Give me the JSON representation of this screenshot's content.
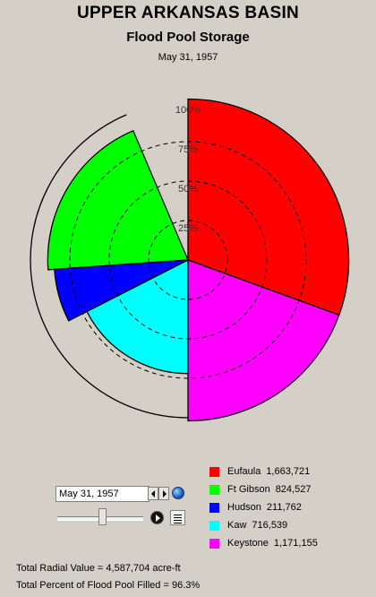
{
  "header": {
    "title": "UPPER ARKANSAS BASIN",
    "subtitle": "Flood Pool Storage",
    "date": "May 31, 1957"
  },
  "chart_data": {
    "type": "polar-area",
    "title": "UPPER ARKANSAS BASIN",
    "subtitle": "Flood Pool Storage",
    "date": "May 31, 1957",
    "radial_ticks": [
      {
        "value": 25,
        "label": "25%"
      },
      {
        "value": 50,
        "label": "50%"
      },
      {
        "value": 75,
        "label": "75%"
      },
      {
        "value": 100,
        "label": "100%"
      }
    ],
    "radial_max": 100,
    "slices": [
      {
        "name": "Eufaula",
        "value_label": "1,663,721",
        "percent_filled": 102,
        "start_deg": 0,
        "end_deg": 110,
        "color": "#ff0000"
      },
      {
        "name": "Keystone",
        "value_label": "1,171,155",
        "percent_filled": 102,
        "start_deg": 90,
        "end_deg": 180,
        "color": "#ff00ff"
      },
      {
        "name": "Kaw",
        "value_label": "716,539",
        "percent_filled": 72,
        "start_deg": 180,
        "end_deg": 243,
        "color": "#00ffff"
      },
      {
        "name": "Hudson",
        "value_label": "211,762",
        "percent_filled": 85,
        "start_deg": 243,
        "end_deg": 266,
        "color": "#0000ff"
      },
      {
        "name": "Ft Gibson",
        "value_label": "824,527",
        "percent_filled": 89,
        "start_deg": 266,
        "end_deg": 337,
        "color": "#00ff00"
      }
    ],
    "legend_position": "bottom-right"
  },
  "legend": [
    {
      "name": "Eufaula",
      "value": "1,663,721",
      "color": "#ff0000"
    },
    {
      "name": "Ft Gibson",
      "value": "824,527",
      "color": "#00ff00"
    },
    {
      "name": "Hudson",
      "value": "211,762",
      "color": "#0000ff"
    },
    {
      "name": "Kaw",
      "value": "716,539",
      "color": "#00ffff"
    },
    {
      "name": "Keystone",
      "value": "1,171,155",
      "color": "#ff00ff"
    }
  ],
  "controls": {
    "date_value": "May 31, 1957",
    "prev_icon": "triangle-left-icon",
    "next_icon": "triangle-right-icon",
    "globe_icon": "globe-icon",
    "play_icon": "play-icon",
    "doc_icon": "document-icon",
    "slider_position": 0.5
  },
  "totals": {
    "radial_value_label": "Total Radial Value =",
    "radial_value": "4,587,704 acre-ft",
    "percent_label": "Total Percent of Flood Pool Filled =",
    "percent_value": "96.3%"
  }
}
